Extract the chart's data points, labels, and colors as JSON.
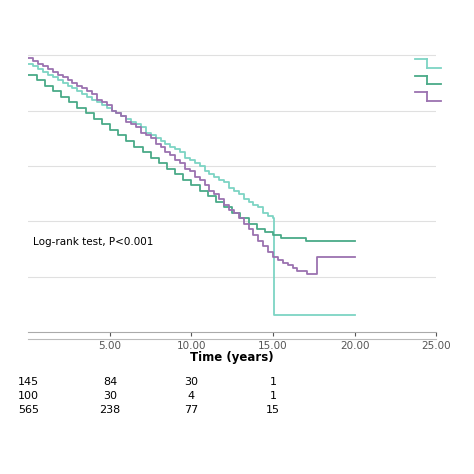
{
  "xlabel": "Time (years)",
  "xlim": [
    0,
    25
  ],
  "ylim": [
    0,
    1.08
  ],
  "xticks": [
    5.0,
    10.0,
    15.0,
    20.0,
    25.0
  ],
  "annotation": "Log-rank test, P<0.001",
  "bg_color": "#ffffff",
  "grid_color": "#e0e0e0",
  "colors": {
    "light_teal": "#7dd4c4",
    "dark_teal": "#4aaa88",
    "purple": "#9b72b0"
  },
  "at_risk_rows": [
    {
      "label": "145",
      "values": [
        "84",
        "30",
        "1"
      ]
    },
    {
      "label": "100",
      "values": [
        "30",
        "4",
        "1"
      ]
    },
    {
      "label": "565",
      "values": [
        "238",
        "77",
        "15"
      ]
    }
  ],
  "curve1_light_teal": {
    "x": [
      0,
      0.3,
      0.6,
      0.9,
      1.2,
      1.5,
      1.8,
      2.1,
      2.4,
      2.7,
      3.0,
      3.3,
      3.6,
      3.9,
      4.2,
      4.5,
      4.8,
      5.1,
      5.4,
      5.7,
      6.0,
      6.3,
      6.6,
      6.9,
      7.2,
      7.5,
      7.8,
      8.1,
      8.4,
      8.7,
      9.0,
      9.3,
      9.6,
      9.9,
      10.2,
      10.5,
      10.8,
      11.1,
      11.4,
      11.7,
      12.0,
      12.3,
      12.6,
      12.9,
      13.2,
      13.5,
      13.8,
      14.1,
      14.4,
      14.7,
      15.0,
      15.05,
      15.5,
      16.0,
      16.5,
      17.0,
      17.5,
      18.0,
      18.5,
      19.0,
      19.5,
      20.0
    ],
    "y": [
      0.97,
      0.96,
      0.95,
      0.94,
      0.93,
      0.92,
      0.91,
      0.9,
      0.89,
      0.88,
      0.87,
      0.86,
      0.85,
      0.84,
      0.83,
      0.82,
      0.81,
      0.8,
      0.79,
      0.78,
      0.77,
      0.76,
      0.75,
      0.74,
      0.72,
      0.71,
      0.7,
      0.69,
      0.68,
      0.67,
      0.66,
      0.65,
      0.63,
      0.62,
      0.61,
      0.6,
      0.58,
      0.57,
      0.56,
      0.55,
      0.54,
      0.52,
      0.51,
      0.5,
      0.48,
      0.47,
      0.46,
      0.45,
      0.43,
      0.42,
      0.41,
      0.06,
      0.06,
      0.06,
      0.06,
      0.06,
      0.06,
      0.06,
      0.06,
      0.06,
      0.06,
      0.06
    ]
  },
  "curve2_dark_teal": {
    "x": [
      0,
      0.5,
      1.0,
      1.5,
      2.0,
      2.5,
      3.0,
      3.5,
      4.0,
      4.5,
      5.0,
      5.5,
      6.0,
      6.5,
      7.0,
      7.5,
      8.0,
      8.5,
      9.0,
      9.5,
      10.0,
      10.5,
      11.0,
      11.5,
      12.0,
      12.5,
      13.0,
      13.5,
      14.0,
      14.5,
      15.0,
      15.5,
      16.0,
      16.5,
      17.0,
      17.5,
      18.0,
      18.5,
      19.0,
      19.5,
      20.0
    ],
    "y": [
      0.93,
      0.91,
      0.89,
      0.87,
      0.85,
      0.83,
      0.81,
      0.79,
      0.77,
      0.75,
      0.73,
      0.71,
      0.69,
      0.67,
      0.65,
      0.63,
      0.61,
      0.59,
      0.57,
      0.55,
      0.53,
      0.51,
      0.49,
      0.47,
      0.45,
      0.43,
      0.41,
      0.39,
      0.37,
      0.36,
      0.35,
      0.34,
      0.34,
      0.34,
      0.33,
      0.33,
      0.33,
      0.33,
      0.33,
      0.33,
      0.33
    ]
  },
  "curve3_purple": {
    "x": [
      0,
      0.3,
      0.6,
      0.9,
      1.2,
      1.5,
      1.8,
      2.1,
      2.4,
      2.7,
      3.0,
      3.3,
      3.6,
      3.9,
      4.2,
      4.5,
      4.8,
      5.1,
      5.4,
      5.7,
      6.0,
      6.3,
      6.6,
      6.9,
      7.2,
      7.5,
      7.8,
      8.1,
      8.4,
      8.7,
      9.0,
      9.3,
      9.6,
      9.9,
      10.2,
      10.5,
      10.8,
      11.1,
      11.4,
      11.7,
      12.0,
      12.3,
      12.6,
      12.9,
      13.2,
      13.5,
      13.8,
      14.1,
      14.4,
      14.7,
      15.0,
      15.3,
      15.6,
      15.9,
      16.2,
      16.5,
      16.8,
      17.1,
      17.4,
      17.7,
      18.0,
      18.3,
      18.6,
      18.9,
      19.2,
      19.5,
      19.8,
      20.0
    ],
    "y": [
      0.99,
      0.98,
      0.97,
      0.96,
      0.95,
      0.94,
      0.93,
      0.92,
      0.91,
      0.9,
      0.89,
      0.88,
      0.87,
      0.86,
      0.84,
      0.83,
      0.82,
      0.8,
      0.79,
      0.78,
      0.76,
      0.75,
      0.74,
      0.72,
      0.71,
      0.7,
      0.68,
      0.67,
      0.65,
      0.64,
      0.62,
      0.61,
      0.59,
      0.58,
      0.56,
      0.55,
      0.53,
      0.51,
      0.5,
      0.48,
      0.46,
      0.44,
      0.43,
      0.41,
      0.39,
      0.37,
      0.35,
      0.33,
      0.31,
      0.29,
      0.27,
      0.26,
      0.25,
      0.24,
      0.23,
      0.22,
      0.22,
      0.21,
      0.21,
      0.27,
      0.27,
      0.27,
      0.27,
      0.27,
      0.27,
      0.27,
      0.27,
      0.27
    ]
  }
}
